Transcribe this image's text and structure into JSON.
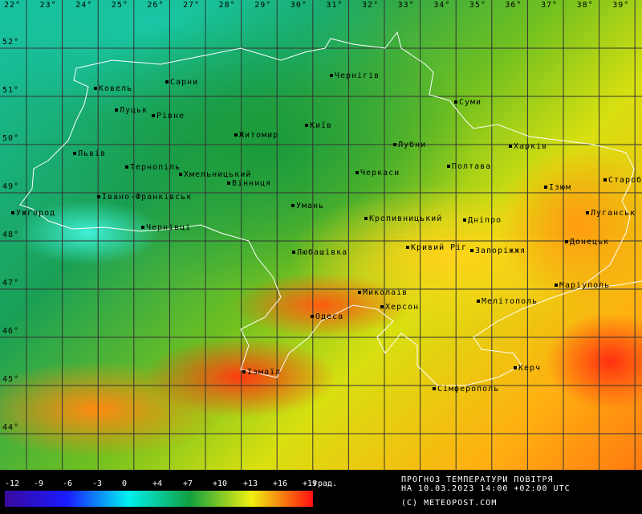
{
  "map": {
    "longitude_labels": [
      "22°",
      "23°",
      "24°",
      "25°",
      "26°",
      "27°",
      "28°",
      "29°",
      "30°",
      "31°",
      "32°",
      "33°",
      "34°",
      "35°",
      "36°",
      "37°",
      "38°",
      "39°"
    ],
    "latitude_labels": [
      "52°",
      "51°",
      "50°",
      "49°",
      "48°",
      "47°",
      "46°",
      "45°",
      "44°"
    ],
    "cities": [
      "Ковель",
      "Сарни",
      "Луцьк",
      "Рівне",
      "Чернігів",
      "Суми",
      "Житомир",
      "Київ",
      "Львів",
      "Лубни",
      "Харків",
      "Тернопіль",
      "Хмельницький",
      "Вінниця",
      "Черкаси",
      "Полтава",
      "Ізюм",
      "Староб",
      "Івано-Франківськ",
      "Ужгород",
      "Умань",
      "Кропивницький",
      "Дніпро",
      "Луганськ",
      "Чернівці",
      "Донецьк",
      "Любашівка",
      "Кривий Ріг",
      "Запоріжжя",
      "Маріуполь",
      "Миколаїв",
      "Херсон",
      "Мелітополь",
      "Одеса",
      "Ізмаїл",
      "Керч",
      "Сімферополь"
    ]
  },
  "legend": {
    "ticks": [
      "-12",
      "-9",
      "-6",
      "-3",
      "0",
      "+4",
      "+7",
      "+10",
      "+13",
      "+16",
      "+19"
    ],
    "unit": "град.",
    "colors": [
      "#3a0aa0",
      "#1a1aff",
      "#00f0f0",
      "#10a040",
      "#f0f010",
      "#ff1010"
    ],
    "title": "ПРОГНОЗ ТЕМПЕРАТУРИ ПОВІТРЯ",
    "date": "НА 10.03.2023 14:00 +02:00 UTC",
    "copyright": "(C) METEOPOST.COM"
  }
}
